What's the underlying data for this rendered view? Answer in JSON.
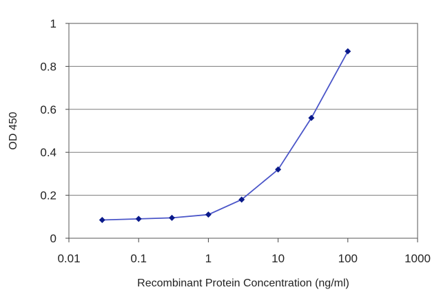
{
  "chart_data": {
    "type": "line",
    "xlabel": "Recombinant Protein Concentration (ng/ml)",
    "ylabel": "OD 450",
    "xscale": "log",
    "xlim": [
      0.01,
      1000
    ],
    "ylim": [
      0,
      1
    ],
    "xticks": [
      "0.01",
      "0.1",
      "1",
      "10",
      "100",
      "1000"
    ],
    "yticks": [
      "0",
      "0.2",
      "0.4",
      "0.6",
      "0.8",
      "1"
    ],
    "grid": "horizontal",
    "legend": "none",
    "series": [
      {
        "color": "#4a55c8",
        "marker_color": "#0a1a8a",
        "x": [
          0.03,
          0.1,
          0.3,
          1,
          3,
          10,
          30,
          100
        ],
        "y": [
          0.085,
          0.09,
          0.095,
          0.11,
          0.18,
          0.32,
          0.56,
          0.87
        ]
      }
    ]
  }
}
